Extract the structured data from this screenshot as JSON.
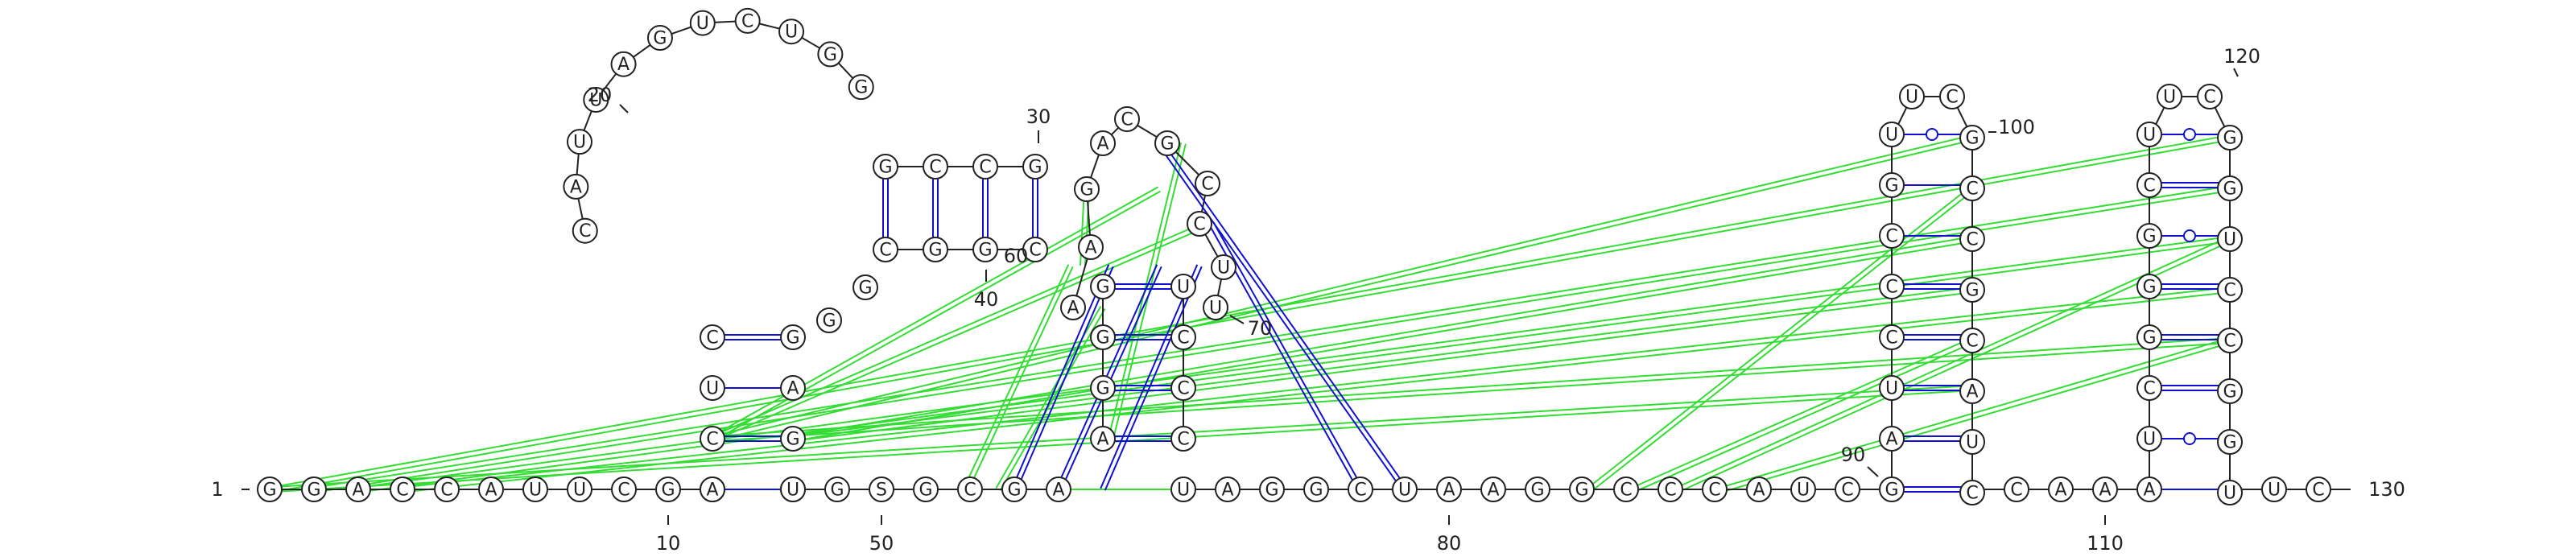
{
  "diagram": {
    "type": "rna-secondary-structure",
    "colors": {
      "backbone": "#222222",
      "canonical_pair": "#1010d0",
      "noncanonical_pair_marker": "#1010d0",
      "tertiary_interaction": "#33dd33",
      "base_fill": "#ffffff"
    },
    "position_labels": [
      {
        "id": "1",
        "text": "1"
      },
      {
        "id": "10",
        "text": "10"
      },
      {
        "id": "20",
        "text": "20"
      },
      {
        "id": "30",
        "text": "30"
      },
      {
        "id": "40",
        "text": "40"
      },
      {
        "id": "50",
        "text": "50"
      },
      {
        "id": "60",
        "text": "60"
      },
      {
        "id": "70",
        "text": "70"
      },
      {
        "id": "80",
        "text": "80"
      },
      {
        "id": "90",
        "text": "90"
      },
      {
        "id": "100",
        "text": "100"
      },
      {
        "id": "110",
        "text": "110"
      },
      {
        "id": "120",
        "text": "120"
      },
      {
        "id": "130",
        "text": "130"
      }
    ],
    "strands": {
      "five_prime_tail": [
        "G",
        "G",
        "A",
        "C",
        "C",
        "A",
        "U",
        "U",
        "C",
        "G",
        "A"
      ],
      "stem1_left": [
        "A",
        "C",
        "U",
        "C"
      ],
      "hairpin1_loop": [
        "C",
        "A",
        "U",
        "U",
        "A",
        "G",
        "U",
        "C",
        "U",
        "G",
        "G"
      ],
      "stem2": {
        "top": [
          "G",
          "C",
          "C",
          "G"
        ],
        "bottom": [
          "C",
          "G",
          "G",
          "C"
        ]
      },
      "hairpin1_right": [
        "G",
        "G",
        "G",
        "A",
        "C",
        "G"
      ],
      "stem1_right": [
        "G",
        "A",
        "G",
        "U"
      ],
      "linker": [
        "U",
        "G",
        "S",
        "G",
        "C",
        "G",
        "A"
      ],
      "stem3_left": [
        "A",
        "G",
        "G",
        "G"
      ],
      "stem3_right": [
        "C",
        "C",
        "C",
        "U"
      ],
      "hairpin2_loop": [
        "A",
        "A",
        "G",
        "A",
        "C",
        "G",
        "C",
        "C",
        "U",
        "U"
      ],
      "middle_strand": [
        "U",
        "A",
        "G",
        "G",
        "C",
        "U",
        "A",
        "A",
        "G",
        "G",
        "C",
        "C",
        "C",
        "A",
        "U",
        "C"
      ],
      "hairpin3_left": [
        "G",
        "A",
        "U",
        "C",
        "C",
        "C",
        "G",
        "U"
      ],
      "hairpin3_loop": [
        "U",
        "C"
      ],
      "hairpin3_right": [
        "G",
        "C",
        "C",
        "G",
        "C",
        "A",
        "U",
        "C"
      ],
      "linker2": [
        "C",
        "A",
        "A"
      ],
      "hairpin4_left": [
        "A",
        "U",
        "C",
        "G",
        "G",
        "G",
        "C",
        "U"
      ],
      "hairpin4_loop": [
        "U",
        "C"
      ],
      "hairpin4_right": [
        "G",
        "G",
        "U",
        "C",
        "C",
        "G",
        "G",
        "U"
      ],
      "three_prime_tail": [
        "U",
        "C"
      ]
    }
  }
}
